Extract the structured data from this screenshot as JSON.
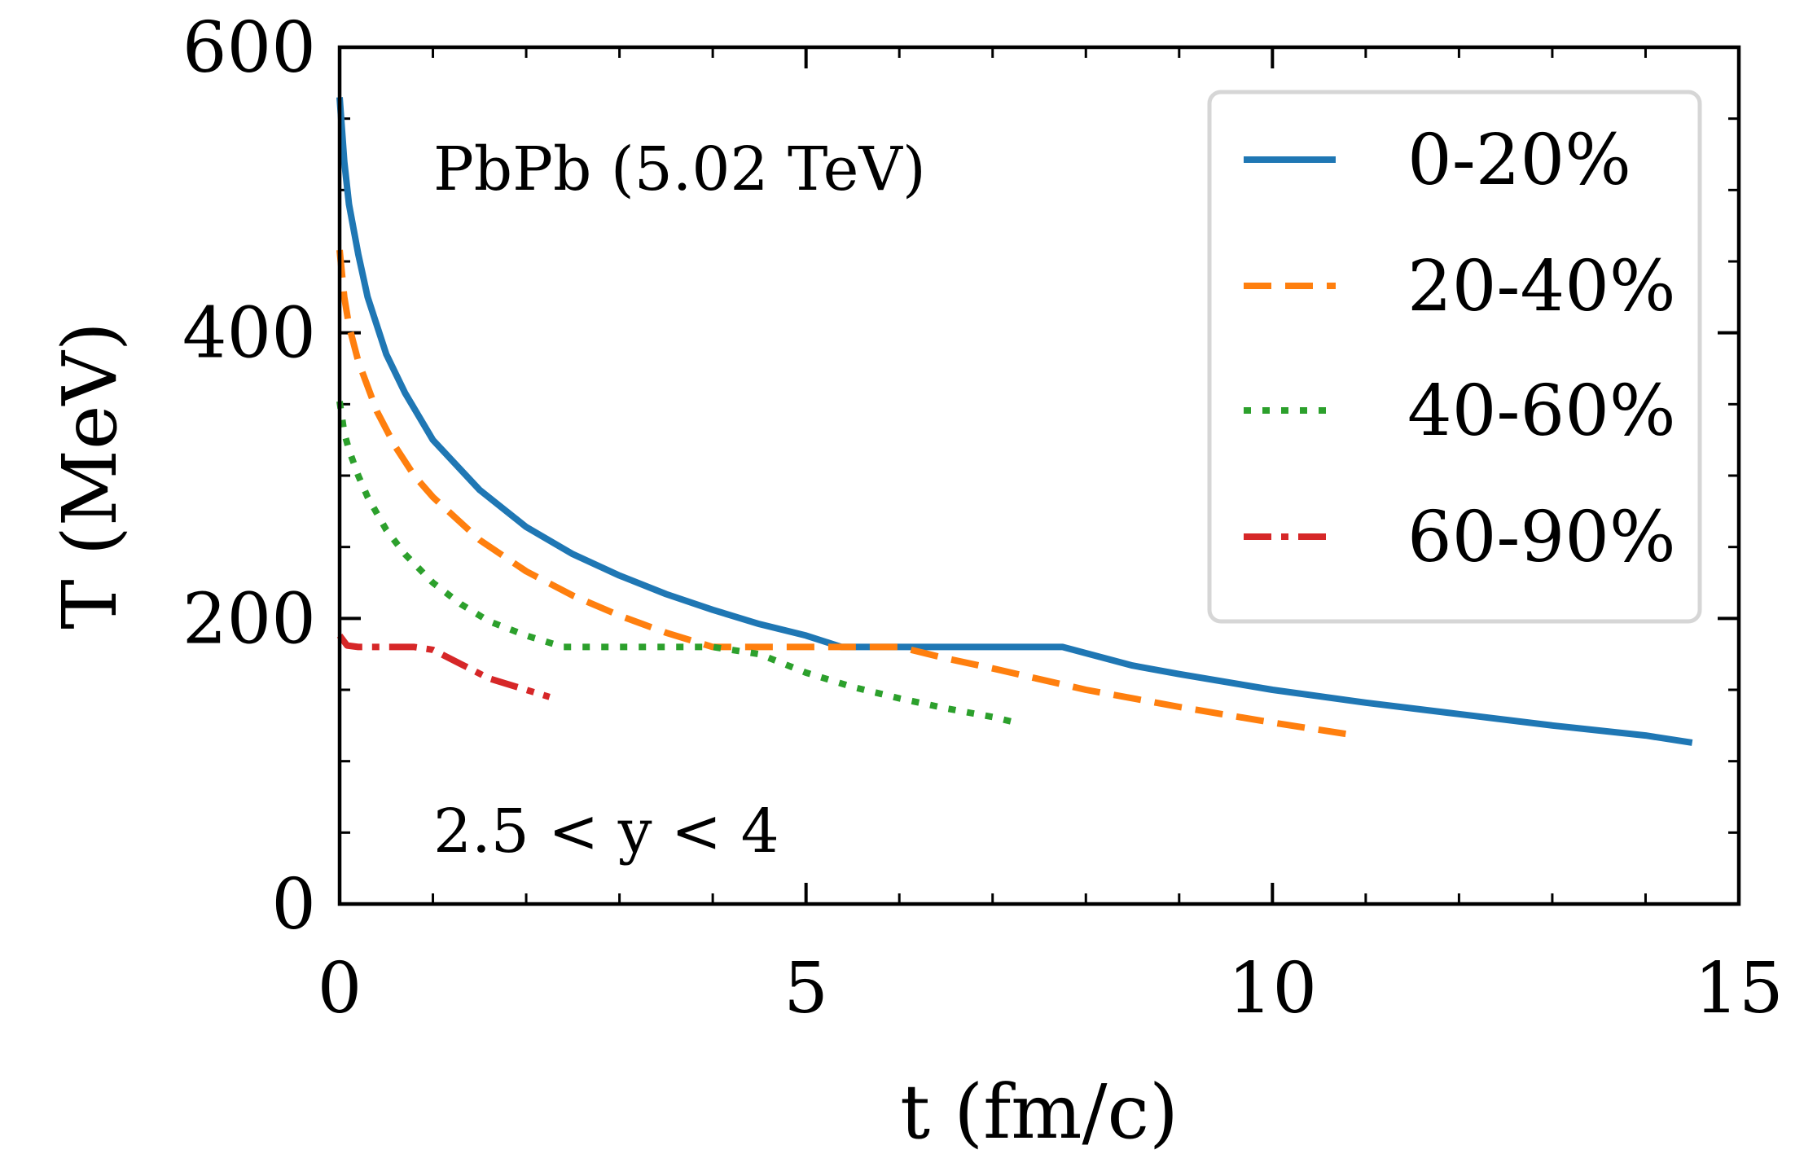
{
  "chart_data": {
    "type": "line",
    "title": "",
    "xlabel": "t (fm/c)",
    "ylabel": "T (MeV)",
    "xlim": [
      0,
      15
    ],
    "ylim": [
      0,
      600
    ],
    "xticks": [
      0,
      5,
      10,
      15
    ],
    "yticks": [
      0,
      200,
      400,
      600
    ],
    "x_minor_step": 1,
    "y_minor_step": 50,
    "grid": false,
    "legend_position": "top-right",
    "annotations": [
      {
        "id": "system",
        "text": "PbPb (5.02 TeV)"
      },
      {
        "id": "rapidity",
        "text": "2.5 < y < 4"
      }
    ],
    "series": [
      {
        "name": "0-20%",
        "color": "#1f77b4",
        "dash": "solid",
        "x": [
          0.0,
          0.05,
          0.1,
          0.2,
          0.3,
          0.5,
          0.7,
          1.0,
          1.5,
          2.0,
          2.5,
          3.0,
          3.5,
          4.0,
          4.5,
          5.0,
          5.38,
          6.0,
          7.0,
          7.75,
          8.5,
          9.0,
          10.0,
          11.0,
          12.0,
          13.0,
          14.0,
          14.5
        ],
        "y": [
          565,
          520,
          490,
          455,
          425,
          385,
          358,
          325,
          290,
          264,
          245,
          230,
          217,
          206,
          196,
          188,
          180,
          180,
          180,
          180,
          167,
          161,
          150,
          141,
          133,
          125,
          118,
          113
        ]
      },
      {
        "name": "20-40%",
        "color": "#ff7f0e",
        "dash": "dashed",
        "x": [
          0.0,
          0.05,
          0.1,
          0.2,
          0.4,
          0.6,
          0.8,
          1.0,
          1.5,
          2.0,
          2.5,
          3.0,
          3.5,
          4.0,
          4.5,
          5.0,
          5.5,
          6.0,
          6.5,
          7.0,
          8.0,
          9.0,
          10.0,
          10.8
        ],
        "y": [
          458,
          425,
          405,
          380,
          345,
          320,
          300,
          285,
          255,
          233,
          216,
          202,
          190,
          180,
          180,
          180,
          180,
          180,
          172,
          165,
          150,
          138,
          127,
          119
        ]
      },
      {
        "name": "40-60%",
        "color": "#2ca02c",
        "dash": "dotted",
        "x": [
          0.0,
          0.05,
          0.1,
          0.2,
          0.3,
          0.5,
          0.7,
          1.0,
          1.3,
          1.6,
          2.0,
          2.4,
          3.0,
          3.5,
          4.0,
          4.5,
          5.0,
          5.5,
          6.0,
          6.5,
          7.0,
          7.25
        ],
        "y": [
          352,
          330,
          318,
          300,
          285,
          262,
          245,
          225,
          210,
          198,
          188,
          180,
          180,
          180,
          180,
          175,
          162,
          152,
          144,
          137,
          131,
          127
        ]
      },
      {
        "name": "60-90%",
        "color": "#d62728",
        "dash": "dashdot",
        "x": [
          0.0,
          0.08,
          0.2,
          0.5,
          0.8,
          1.0,
          1.3,
          1.6,
          2.0,
          2.25
        ],
        "y": [
          188,
          181,
          180,
          180,
          180,
          178,
          168,
          158,
          150,
          145
        ]
      }
    ]
  }
}
